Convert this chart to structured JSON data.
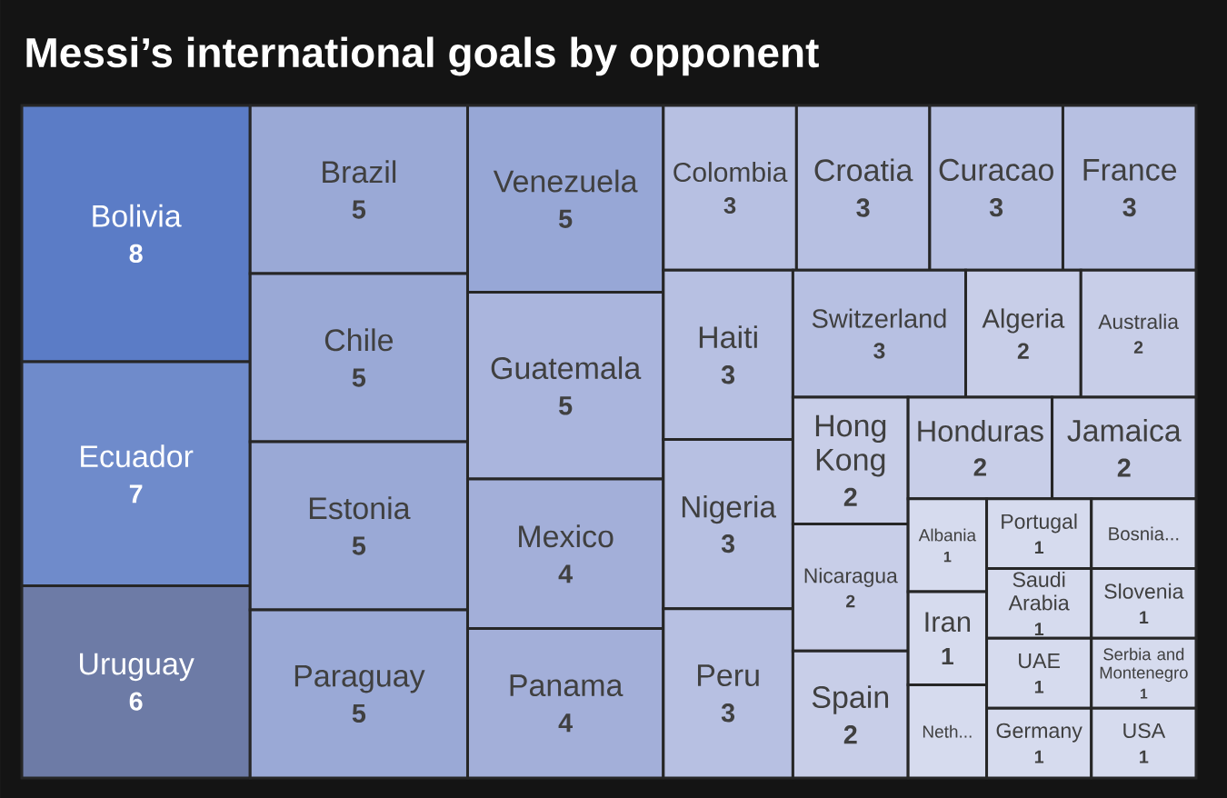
{
  "chart_data": {
    "type": "other",
    "title": "Messi’s international goals by opponent",
    "categories": [
      "Bolivia",
      "Ecuador",
      "Uruguay",
      "Brazil",
      "Chile",
      "Estonia",
      "Paraguay",
      "Venezuela",
      "Guatemala",
      "Mexico",
      "Panama",
      "Colombia",
      "Croatia",
      "Curacao",
      "France",
      "Haiti",
      "Nigeria",
      "Peru",
      "Switzerland",
      "Algeria",
      "Australia",
      "Hong Kong",
      "Nicaragua",
      "Spain",
      "Honduras",
      "Jamaica",
      "Albania",
      "Iran",
      "Neth...",
      "Portugal",
      "Bosnia...",
      "Saudi Arabia",
      "Slovenia",
      "UAE",
      "Germany",
      "Serbia and Montenegro",
      "USA"
    ],
    "values": [
      8,
      7,
      6,
      5,
      5,
      5,
      5,
      5,
      5,
      4,
      4,
      3,
      3,
      3,
      3,
      3,
      3,
      3,
      3,
      2,
      2,
      2,
      2,
      2,
      2,
      2,
      1,
      1,
      null,
      1,
      null,
      1,
      1,
      1,
      1,
      1,
      1
    ],
    "value_labels": [
      "8",
      "7",
      "6",
      "5",
      "5",
      "5",
      "5",
      "5",
      "5",
      "4",
      "4",
      "3",
      "3",
      "3",
      "3",
      "3",
      "3",
      "3",
      "3",
      "2",
      "2",
      "2",
      "2",
      "2",
      "2",
      "2",
      "1",
      "1",
      null,
      "1",
      null,
      "1",
      "1",
      "1",
      "1",
      "1",
      "1"
    ],
    "colors": [
      "#5b7cc6",
      "#6f8bcb",
      "#6d7ba6",
      "#9aa9d6",
      "#9aa9d6",
      "#9aa9d6",
      "#9aa9d6",
      "#97a7d6",
      "#aab5dd",
      "#a3afd9",
      "#a3afd9",
      "#b7c0e2",
      "#b7c0e2",
      "#b7c0e2",
      "#b7c0e2",
      "#b7c0e2",
      "#b7c0e2",
      "#b7c0e2",
      "#b7c0e2",
      "#c8cee8",
      "#c8cee8",
      "#c8cee8",
      "#c8cee8",
      "#c8cee8",
      "#c8cee8",
      "#c8cee8",
      "#d6dbee",
      "#d6dbee",
      "#d6dbee",
      "#d6dbee",
      "#d6dbee",
      "#d6dbee",
      "#d6dbee",
      "#d6dbee",
      "#d6dbee",
      "#d6dbee",
      "#d6dbee"
    ]
  }
}
